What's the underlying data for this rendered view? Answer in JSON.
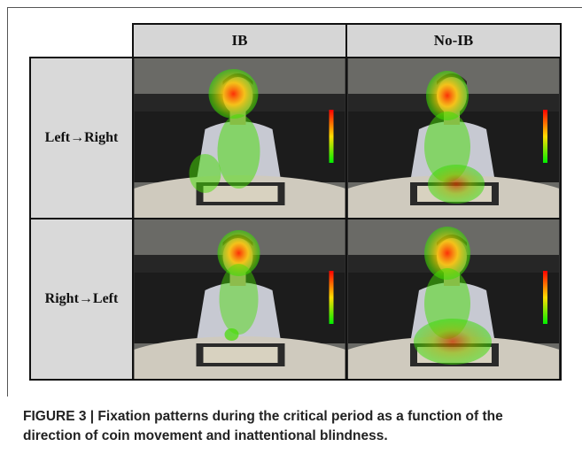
{
  "table": {
    "columns": [
      "IB",
      "No-IB"
    ],
    "rows": [
      "Left→Right",
      "Right→Left"
    ]
  },
  "caption": "FIGURE 3 | Fixation patterns during the critical period as a function of the direction of coin movement and inattentional blindness."
}
